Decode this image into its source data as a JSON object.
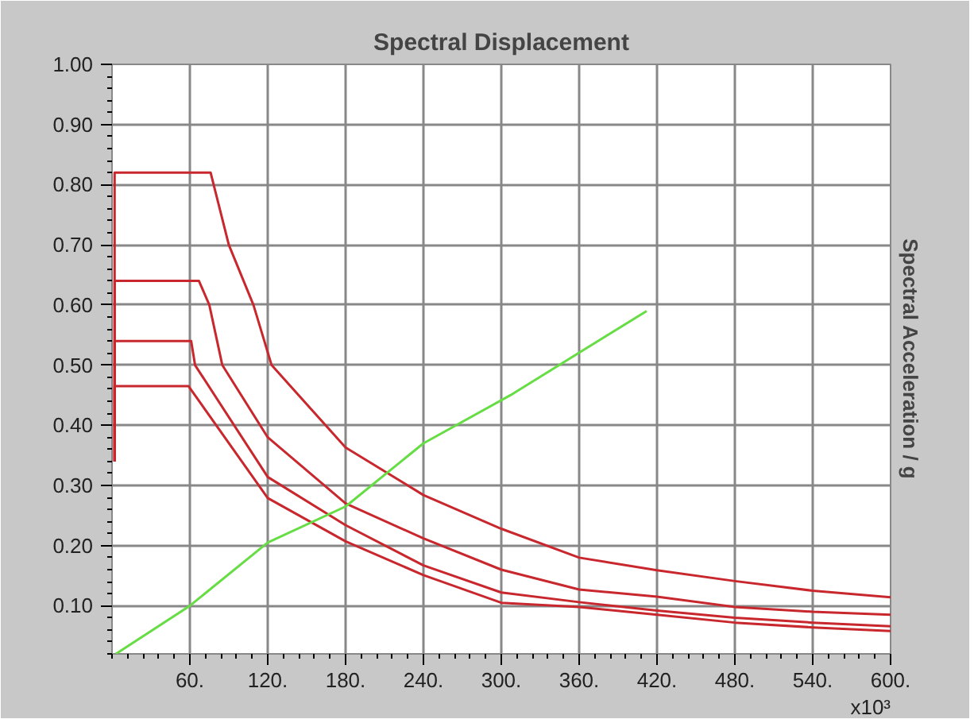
{
  "chart_data": {
    "type": "line",
    "title": "Spectral Displacement",
    "ylabel": "Spectral Acceleration / g",
    "annotations": [
      "x10³"
    ],
    "xlim": [
      0,
      600
    ],
    "ylim": [
      0.02,
      1.0
    ],
    "xticks": [
      {
        "value": 60,
        "label": "60."
      },
      {
        "value": 120,
        "label": "120."
      },
      {
        "value": 180,
        "label": "180."
      },
      {
        "value": 240,
        "label": "240."
      },
      {
        "value": 300,
        "label": "300."
      },
      {
        "value": 360,
        "label": "360."
      },
      {
        "value": 420,
        "label": "420."
      },
      {
        "value": 480,
        "label": "480."
      },
      {
        "value": 540,
        "label": "540."
      },
      {
        "value": 600,
        "label": "600."
      }
    ],
    "yticks": [
      {
        "value": 0.1,
        "label": "0.10"
      },
      {
        "value": 0.2,
        "label": "0.20"
      },
      {
        "value": 0.3,
        "label": "0.30"
      },
      {
        "value": 0.4,
        "label": "0.40"
      },
      {
        "value": 0.5,
        "label": "0.50"
      },
      {
        "value": 0.6,
        "label": "0.60"
      },
      {
        "value": 0.7,
        "label": "0.70"
      },
      {
        "value": 0.8,
        "label": "0.80"
      },
      {
        "value": 0.9,
        "label": "0.90"
      },
      {
        "value": 1.0,
        "label": "1.00"
      }
    ],
    "grid": true,
    "line_style": "solid",
    "marker": "none",
    "series": [
      {
        "color": "#c8282d",
        "x": [
          2,
          2,
          76,
          90,
          109,
          123,
          180,
          240,
          300,
          360,
          420,
          480,
          540,
          600
        ],
        "values": [
          0.34,
          0.82,
          0.82,
          0.7,
          0.6,
          0.5,
          0.363,
          0.284,
          0.228,
          0.18,
          0.159,
          0.141,
          0.125,
          0.114
        ]
      },
      {
        "color": "#c8282d",
        "x": [
          2,
          2,
          67,
          75,
          85,
          120,
          180,
          240,
          300,
          360,
          420,
          480,
          540,
          600
        ],
        "values": [
          0.34,
          0.64,
          0.64,
          0.6,
          0.5,
          0.38,
          0.27,
          0.212,
          0.16,
          0.127,
          0.115,
          0.098,
          0.09,
          0.085
        ]
      },
      {
        "color": "#c8282d",
        "x": [
          2,
          2,
          61,
          64,
          120,
          180,
          240,
          300,
          360,
          420,
          480,
          540,
          600
        ],
        "values": [
          0.34,
          0.54,
          0.54,
          0.5,
          0.314,
          0.234,
          0.167,
          0.122,
          0.106,
          0.092,
          0.08,
          0.072,
          0.066
        ]
      },
      {
        "color": "#c8282d",
        "x": [
          2,
          2,
          59,
          120,
          180,
          240,
          300,
          360,
          420,
          480,
          540,
          600
        ],
        "values": [
          0.34,
          0.465,
          0.465,
          0.279,
          0.207,
          0.151,
          0.105,
          0.098,
          0.085,
          0.072,
          0.064,
          0.058
        ]
      },
      {
        "color": "#66dd44",
        "x": [
          3,
          60,
          120,
          180,
          240,
          307,
          412
        ],
        "values": [
          0.02,
          0.1,
          0.205,
          0.265,
          0.37,
          0.45,
          0.59
        ]
      }
    ]
  }
}
